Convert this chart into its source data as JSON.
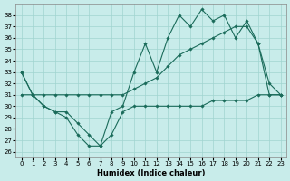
{
  "xlabel": "Humidex (Indice chaleur)",
  "bg_color": "#c8ecea",
  "grid_color": "#a0d4d0",
  "line_color": "#1a6b5a",
  "xlim": [
    -0.5,
    23.5
  ],
  "ylim": [
    25.5,
    39.0
  ],
  "yticks": [
    26,
    27,
    28,
    29,
    30,
    31,
    32,
    33,
    34,
    35,
    36,
    37,
    38
  ],
  "xticks": [
    0,
    1,
    2,
    3,
    4,
    5,
    6,
    7,
    8,
    9,
    10,
    11,
    12,
    13,
    14,
    15,
    16,
    17,
    18,
    19,
    20,
    21,
    22,
    23
  ],
  "series": [
    [
      31,
      31,
      30,
      29.5,
      29.5,
      28.5,
      27.5,
      26.5,
      27.5,
      29.5,
      30,
      30,
      30,
      30,
      30,
      30,
      30,
      30.5,
      30.5,
      30.5,
      30.5,
      31,
      31,
      31
    ],
    [
      33,
      31,
      31,
      31,
      31,
      31,
      31,
      31,
      31,
      31,
      31.5,
      32,
      32.5,
      33.5,
      34.5,
      35,
      35.5,
      36,
      36.5,
      37,
      37,
      35.5,
      31,
      31
    ],
    [
      33,
      31,
      30,
      29.5,
      29,
      27.5,
      26.5,
      26.5,
      29.5,
      30,
      33,
      35.5,
      33,
      36,
      38,
      37,
      38.5,
      37.5,
      38,
      36,
      37.5,
      35.5,
      32,
      31
    ]
  ]
}
